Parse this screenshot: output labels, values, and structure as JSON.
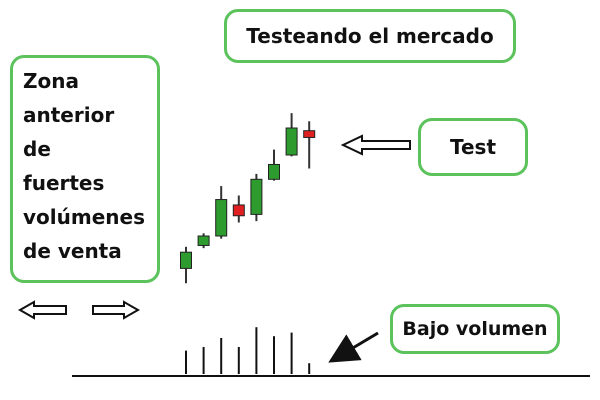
{
  "annotations": {
    "title": "Testeando el mercado",
    "zone_lines": [
      "Zona",
      "anterior",
      "de",
      "fuertes",
      "volúmenes",
      "de venta"
    ],
    "test_label": "Test",
    "volume_label": "Bajo volumen"
  },
  "colors": {
    "callout_border": "#5cc25c",
    "bullish": "#2e9b2e",
    "bearish": "#e02020",
    "wick": "#333333",
    "axis": "#111111"
  },
  "chart_data": {
    "type": "candlestick",
    "title": "Testeando el mercado",
    "xlabel": "",
    "ylabel": "",
    "y_range": [
      0,
      100
    ],
    "volume_range": [
      0,
      60
    ],
    "grid": false,
    "candles": [
      {
        "open": 16,
        "close": 28,
        "high": 32,
        "low": 5,
        "color": "green"
      },
      {
        "open": 33,
        "close": 40,
        "high": 42,
        "low": 31,
        "color": "green"
      },
      {
        "open": 40,
        "close": 67,
        "high": 77,
        "low": 38,
        "color": "green"
      },
      {
        "open": 63,
        "close": 55,
        "high": 70,
        "low": 50,
        "color": "red"
      },
      {
        "open": 56,
        "close": 82,
        "high": 86,
        "low": 51,
        "color": "green"
      },
      {
        "open": 82,
        "close": 93,
        "high": 104,
        "low": 81,
        "color": "green"
      },
      {
        "open": 100,
        "close": 120,
        "high": 131,
        "low": 99,
        "color": "green"
      },
      {
        "open": 118,
        "close": 113,
        "high": 125,
        "low": 90,
        "color": "red"
      }
    ],
    "volumes": [
      26,
      30,
      40,
      30,
      52,
      42,
      46,
      12
    ]
  }
}
